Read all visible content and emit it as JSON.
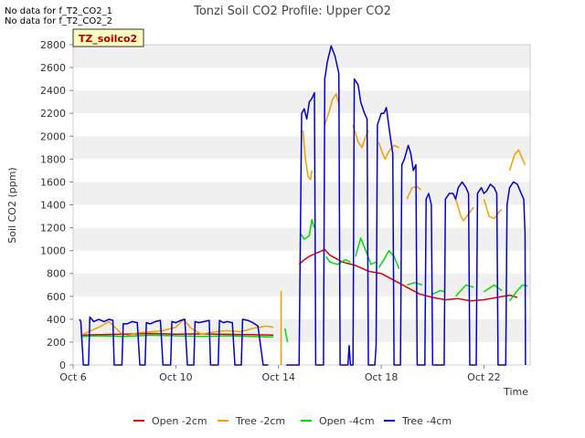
{
  "notes": [
    "No data for f_T2_CO2_1",
    "No data for f_T2_CO2_2"
  ],
  "chart_data": {
    "type": "line",
    "title": "Tonzi Soil CO2 Profile: Upper CO2",
    "xlabel": "Time",
    "ylabel": "Soil CO2 (ppm)",
    "badge": "TZ_soilco2",
    "xlim": [
      6,
      23.8
    ],
    "ylim": [
      0,
      2800
    ],
    "yticks": [
      0,
      200,
      400,
      600,
      800,
      1000,
      1200,
      1400,
      1600,
      1800,
      2000,
      2200,
      2400,
      2600,
      2800
    ],
    "xticks": [
      {
        "value": 6,
        "label": "Oct 6"
      },
      {
        "value": 10,
        "label": "Oct 10"
      },
      {
        "value": 14,
        "label": "Oct 14"
      },
      {
        "value": 18,
        "label": "Oct 18"
      },
      {
        "value": 22,
        "label": "Oct 22"
      }
    ],
    "series": [
      {
        "name": "Open -2cm",
        "color": "#dd0000",
        "segments": [
          [
            [
              6.3,
              260
            ],
            [
              7.0,
              265
            ],
            [
              8.0,
              270
            ],
            [
              9.0,
              275
            ],
            [
              10.0,
              270
            ],
            [
              11.0,
              272
            ],
            [
              12.0,
              268
            ],
            [
              13.0,
              265
            ],
            [
              13.8,
              262
            ]
          ],
          [
            [
              14.8,
              880
            ],
            [
              15.0,
              920
            ],
            [
              15.2,
              950
            ],
            [
              15.5,
              980
            ],
            [
              15.8,
              1010
            ],
            [
              16.0,
              960
            ],
            [
              16.5,
              900
            ],
            [
              17.0,
              870
            ],
            [
              17.5,
              820
            ],
            [
              18.0,
              800
            ],
            [
              18.5,
              740
            ],
            [
              19.0,
              680
            ],
            [
              19.5,
              620
            ],
            [
              20.0,
              590
            ],
            [
              20.5,
              570
            ],
            [
              21.0,
              580
            ],
            [
              21.5,
              560
            ],
            [
              22.0,
              570
            ],
            [
              22.5,
              590
            ],
            [
              23.0,
              610
            ],
            [
              23.3,
              590
            ]
          ]
        ]
      },
      {
        "name": "Tree -2cm",
        "color": "#f0a000",
        "segments": [
          [
            [
              6.3,
              260
            ],
            [
              7.0,
              330
            ],
            [
              7.4,
              380
            ],
            [
              8.0,
              250
            ],
            [
              8.5,
              280
            ],
            [
              9.0,
              290
            ],
            [
              9.5,
              300
            ],
            [
              10.0,
              330
            ],
            [
              10.3,
              400
            ],
            [
              10.6,
              320
            ],
            [
              11.0,
              270
            ],
            [
              11.5,
              290
            ],
            [
              12.0,
              300
            ],
            [
              12.5,
              290
            ],
            [
              13.0,
              320
            ],
            [
              13.5,
              340
            ],
            [
              13.8,
              330
            ]
          ],
          [
            [
              14.1,
              650
            ]
          ],
          [
            [
              14.95,
              2050
            ],
            [
              15.05,
              1800
            ],
            [
              15.15,
              1650
            ],
            [
              15.25,
              1620
            ],
            [
              15.3,
              1700
            ]
          ],
          [
            [
              15.8,
              2100
            ],
            [
              15.95,
              2200
            ],
            [
              16.1,
              2320
            ],
            [
              16.25,
              2370
            ],
            [
              16.35,
              2280
            ]
          ],
          [
            [
              16.9,
              2100
            ],
            [
              17.1,
              1950
            ],
            [
              17.25,
              1900
            ],
            [
              17.4,
              2000
            ],
            [
              17.5,
              2050
            ]
          ],
          [
            [
              17.9,
              1950
            ],
            [
              18.05,
              1850
            ],
            [
              18.15,
              1800
            ],
            [
              18.3,
              1870
            ],
            [
              18.5,
              1920
            ],
            [
              18.7,
              1900
            ]
          ],
          [
            [
              19.0,
              1450
            ],
            [
              19.2,
              1550
            ],
            [
              19.4,
              1560
            ],
            [
              19.55,
              1530
            ]
          ],
          [
            [
              20.9,
              1450
            ],
            [
              21.1,
              1300
            ],
            [
              21.2,
              1260
            ],
            [
              21.4,
              1320
            ],
            [
              21.6,
              1380
            ]
          ],
          [
            [
              22.0,
              1450
            ],
            [
              22.2,
              1300
            ],
            [
              22.4,
              1280
            ],
            [
              22.6,
              1340
            ],
            [
              22.7,
              1360
            ]
          ],
          [
            [
              23.0,
              1700
            ],
            [
              23.2,
              1840
            ],
            [
              23.35,
              1880
            ],
            [
              23.5,
              1800
            ],
            [
              23.6,
              1750
            ]
          ]
        ]
      },
      {
        "name": "Open -4cm",
        "color": "#00dd00",
        "segments": [
          [
            [
              6.3,
              250
            ],
            [
              7.0,
              255
            ],
            [
              8.0,
              250
            ],
            [
              9.0,
              260
            ],
            [
              10.0,
              255
            ],
            [
              11.0,
              250
            ],
            [
              12.0,
              255
            ],
            [
              13.0,
              250
            ],
            [
              13.8,
              245
            ]
          ],
          [
            [
              14.25,
              320
            ],
            [
              14.35,
              200
            ]
          ],
          [
            [
              14.85,
              1150
            ],
            [
              15.0,
              1100
            ],
            [
              15.2,
              1130
            ],
            [
              15.3,
              1270
            ],
            [
              15.4,
              1200
            ]
          ],
          [
            [
              15.85,
              950
            ],
            [
              16.0,
              900
            ],
            [
              16.3,
              880
            ],
            [
              16.6,
              920
            ],
            [
              16.8,
              900
            ]
          ],
          [
            [
              17.0,
              950
            ],
            [
              17.2,
              1110
            ],
            [
              17.4,
              1000
            ],
            [
              17.6,
              880
            ],
            [
              17.8,
              900
            ]
          ],
          [
            [
              17.9,
              850
            ],
            [
              18.1,
              920
            ],
            [
              18.3,
              1000
            ],
            [
              18.5,
              950
            ],
            [
              18.7,
              840
            ]
          ],
          [
            [
              19.0,
              700
            ],
            [
              19.3,
              720
            ],
            [
              19.6,
              700
            ]
          ],
          [
            [
              20.0,
              620
            ],
            [
              20.3,
              650
            ],
            [
              20.5,
              640
            ]
          ],
          [
            [
              20.9,
              600
            ],
            [
              21.3,
              700
            ],
            [
              21.6,
              680
            ]
          ],
          [
            [
              22.0,
              640
            ],
            [
              22.4,
              700
            ],
            [
              22.7,
              650
            ]
          ],
          [
            [
              23.0,
              560
            ],
            [
              23.3,
              650
            ],
            [
              23.5,
              700
            ],
            [
              23.7,
              690
            ]
          ]
        ]
      },
      {
        "name": "Tree -4cm",
        "color": "#0000cc",
        "segments": [
          [
            [
              6.25,
              400
            ],
            [
              6.3,
              380
            ],
            [
              6.4,
              0
            ],
            [
              6.6,
              0
            ],
            [
              6.65,
              420
            ],
            [
              6.8,
              380
            ],
            [
              7.0,
              400
            ],
            [
              7.2,
              380
            ],
            [
              7.4,
              400
            ],
            [
              7.55,
              390
            ],
            [
              7.6,
              0
            ],
            [
              7.9,
              0
            ],
            [
              7.95,
              360
            ],
            [
              8.1,
              360
            ],
            [
              8.3,
              380
            ],
            [
              8.5,
              370
            ],
            [
              8.6,
              0
            ],
            [
              8.8,
              0
            ],
            [
              8.85,
              370
            ],
            [
              9.0,
              360
            ],
            [
              9.2,
              380
            ],
            [
              9.4,
              390
            ],
            [
              9.5,
              0
            ],
            [
              9.8,
              0
            ],
            [
              9.85,
              380
            ],
            [
              10.0,
              370
            ],
            [
              10.2,
              390
            ],
            [
              10.35,
              400
            ],
            [
              10.45,
              0
            ],
            [
              10.7,
              0
            ],
            [
              10.75,
              380
            ],
            [
              10.9,
              370
            ],
            [
              11.1,
              380
            ],
            [
              11.3,
              390
            ],
            [
              11.35,
              0
            ],
            [
              11.65,
              0
            ],
            [
              11.7,
              390
            ],
            [
              11.85,
              370
            ],
            [
              12.0,
              380
            ],
            [
              12.2,
              370
            ],
            [
              12.3,
              0
            ],
            [
              12.55,
              0
            ],
            [
              12.6,
              400
            ],
            [
              12.8,
              390
            ],
            [
              13.0,
              370
            ],
            [
              13.2,
              340
            ],
            [
              13.4,
              0
            ],
            [
              13.6,
              0
            ]
          ],
          [
            [
              14.3,
              0
            ],
            [
              14.8,
              0
            ],
            [
              14.9,
              2200
            ],
            [
              15.0,
              2240
            ],
            [
              15.1,
              2150
            ],
            [
              15.2,
              2300
            ],
            [
              15.3,
              2330
            ],
            [
              15.4,
              2380
            ],
            [
              15.45,
              0
            ],
            [
              15.75,
              0
            ],
            [
              15.8,
              2500
            ],
            [
              15.9,
              2650
            ],
            [
              16.05,
              2790
            ],
            [
              16.2,
              2700
            ],
            [
              16.35,
              2550
            ],
            [
              16.4,
              0
            ],
            [
              16.7,
              0
            ],
            [
              16.75,
              170
            ],
            [
              16.8,
              0
            ],
            [
              16.9,
              0
            ],
            [
              16.95,
              2500
            ],
            [
              17.1,
              2450
            ],
            [
              17.2,
              2300
            ],
            [
              17.35,
              2200
            ],
            [
              17.45,
              2150
            ],
            [
              17.5,
              0
            ],
            [
              17.75,
              0
            ],
            [
              17.8,
              170
            ],
            [
              17.85,
              2100
            ],
            [
              18.0,
              2200
            ],
            [
              18.1,
              2200
            ],
            [
              18.2,
              2250
            ],
            [
              18.35,
              2000
            ],
            [
              18.45,
              1850
            ],
            [
              18.5,
              0
            ],
            [
              18.75,
              0
            ],
            [
              18.8,
              1750
            ],
            [
              18.9,
              1800
            ],
            [
              19.05,
              1920
            ],
            [
              19.15,
              1850
            ],
            [
              19.25,
              1700
            ],
            [
              19.35,
              1750
            ],
            [
              19.4,
              0
            ],
            [
              19.7,
              0
            ],
            [
              19.75,
              1450
            ],
            [
              19.85,
              1500
            ],
            [
              19.95,
              1400
            ],
            [
              20.0,
              0
            ],
            [
              20.45,
              0
            ],
            [
              20.5,
              1450
            ],
            [
              20.65,
              1500
            ],
            [
              20.8,
              1500
            ],
            [
              20.9,
              1450
            ],
            [
              21.0,
              1550
            ],
            [
              21.15,
              1600
            ],
            [
              21.3,
              1550
            ],
            [
              21.4,
              1500
            ],
            [
              21.45,
              0
            ],
            [
              21.7,
              0
            ],
            [
              21.75,
              1500
            ],
            [
              21.9,
              1550
            ],
            [
              22.0,
              1500
            ],
            [
              22.1,
              1520
            ],
            [
              22.25,
              1580
            ],
            [
              22.4,
              1550
            ],
            [
              22.5,
              1500
            ],
            [
              22.55,
              0
            ],
            [
              22.85,
              0
            ],
            [
              22.9,
              1400
            ],
            [
              23.0,
              1550
            ],
            [
              23.15,
              1600
            ],
            [
              23.3,
              1580
            ],
            [
              23.45,
              1500
            ],
            [
              23.55,
              1450
            ],
            [
              23.6,
              1150
            ],
            [
              23.62,
              0
            ]
          ]
        ]
      }
    ]
  }
}
